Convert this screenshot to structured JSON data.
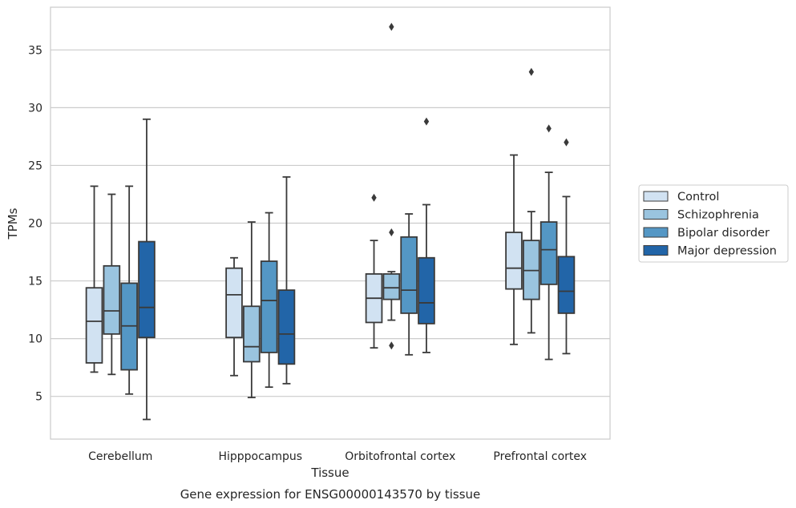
{
  "chart_data": {
    "type": "box",
    "caption": "Gene expression for ENSG00000143570 by tissue",
    "xlabel": "Tissue",
    "ylabel": "TPMs",
    "ylim": [
      1.3,
      38.7
    ],
    "yticks": [
      5,
      10,
      15,
      20,
      25,
      30,
      35
    ],
    "grid": "horizontal",
    "legend_position": "right",
    "categories": [
      "Cerebellum",
      "Hipppocampus",
      "Orbitofrontal cortex",
      "Prefrontal cortex"
    ],
    "series": [
      {
        "name": "Control",
        "color": "#d1e2f2",
        "boxes": [
          {
            "whislo": 7.1,
            "q1": 7.9,
            "med": 11.5,
            "q3": 14.4,
            "whishi": 23.2,
            "fliers": []
          },
          {
            "whislo": 6.8,
            "q1": 10.1,
            "med": 13.8,
            "q3": 16.1,
            "whishi": 17.0,
            "fliers": []
          },
          {
            "whislo": 9.2,
            "q1": 11.4,
            "med": 13.5,
            "q3": 15.6,
            "whishi": 18.5,
            "fliers": [
              22.2
            ]
          },
          {
            "whislo": 9.5,
            "q1": 14.3,
            "med": 16.1,
            "q3": 19.2,
            "whishi": 25.9,
            "fliers": []
          }
        ]
      },
      {
        "name": "Schizophrenia",
        "color": "#9ac4df",
        "boxes": [
          {
            "whislo": 6.9,
            "q1": 10.4,
            "med": 12.4,
            "q3": 16.3,
            "whishi": 22.5,
            "fliers": []
          },
          {
            "whislo": 4.9,
            "q1": 8.0,
            "med": 9.3,
            "q3": 12.8,
            "whishi": 20.1,
            "fliers": []
          },
          {
            "whislo": 11.6,
            "q1": 13.4,
            "med": 14.4,
            "q3": 15.6,
            "whishi": 15.8,
            "fliers": [
              9.4,
              19.2,
              37.0
            ]
          },
          {
            "whislo": 10.5,
            "q1": 13.4,
            "med": 15.9,
            "q3": 18.5,
            "whishi": 21.0,
            "fliers": [
              33.1
            ]
          }
        ]
      },
      {
        "name": "Bipolar disorder",
        "color": "#5497c5",
        "boxes": [
          {
            "whislo": 5.2,
            "q1": 7.3,
            "med": 11.1,
            "q3": 14.8,
            "whishi": 23.2,
            "fliers": []
          },
          {
            "whislo": 5.8,
            "q1": 8.8,
            "med": 13.3,
            "q3": 16.7,
            "whishi": 20.9,
            "fliers": []
          },
          {
            "whislo": 8.6,
            "q1": 12.2,
            "med": 14.2,
            "q3": 18.8,
            "whishi": 20.8,
            "fliers": []
          },
          {
            "whislo": 8.2,
            "q1": 14.7,
            "med": 17.7,
            "q3": 20.1,
            "whishi": 24.4,
            "fliers": [
              28.2
            ]
          }
        ]
      },
      {
        "name": "Major depression",
        "color": "#2265a8",
        "boxes": [
          {
            "whislo": 3.0,
            "q1": 10.1,
            "med": 12.7,
            "q3": 18.4,
            "whishi": 29.0,
            "fliers": []
          },
          {
            "whislo": 6.1,
            "q1": 7.8,
            "med": 10.4,
            "q3": 14.2,
            "whishi": 24.0,
            "fliers": []
          },
          {
            "whislo": 8.8,
            "q1": 11.3,
            "med": 13.1,
            "q3": 17.0,
            "whishi": 21.6,
            "fliers": [
              28.8
            ]
          },
          {
            "whislo": 8.7,
            "q1": 12.2,
            "med": 14.1,
            "q3": 17.1,
            "whishi": 22.3,
            "fliers": [
              27.0
            ]
          }
        ]
      }
    ]
  }
}
